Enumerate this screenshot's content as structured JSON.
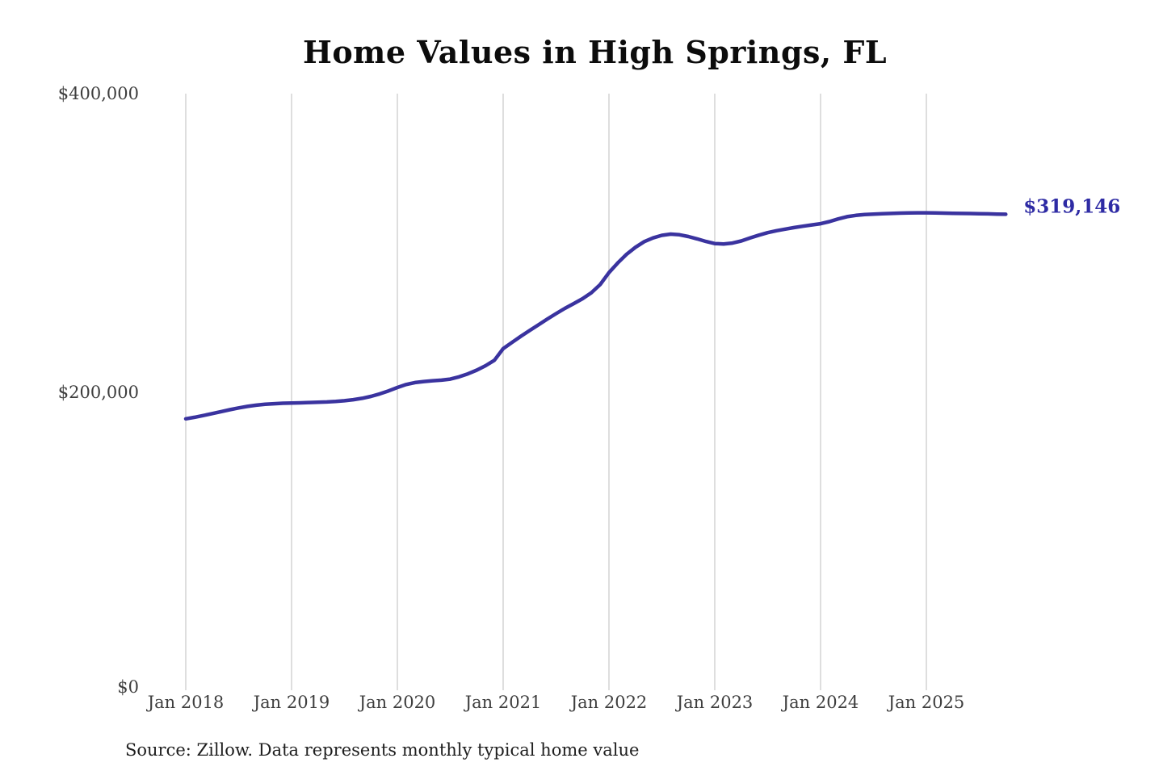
{
  "chart_data": {
    "type": "line",
    "title": "Home Values in High Springs, FL",
    "series_name": "Monthly typical home value",
    "x": [
      "2018-01",
      "2018-02",
      "2018-03",
      "2018-04",
      "2018-05",
      "2018-06",
      "2018-07",
      "2018-08",
      "2018-09",
      "2018-10",
      "2018-11",
      "2018-12",
      "2019-01",
      "2019-02",
      "2019-03",
      "2019-04",
      "2019-05",
      "2019-06",
      "2019-07",
      "2019-08",
      "2019-09",
      "2019-10",
      "2019-11",
      "2019-12",
      "2020-01",
      "2020-02",
      "2020-03",
      "2020-04",
      "2020-05",
      "2020-06",
      "2020-07",
      "2020-08",
      "2020-09",
      "2020-10",
      "2020-11",
      "2020-12",
      "2021-01",
      "2021-02",
      "2021-03",
      "2021-04",
      "2021-05",
      "2021-06",
      "2021-07",
      "2021-08",
      "2021-09",
      "2021-10",
      "2021-11",
      "2021-12",
      "2022-01",
      "2022-02",
      "2022-03",
      "2022-04",
      "2022-05",
      "2022-06",
      "2022-07",
      "2022-08",
      "2022-09",
      "2022-10",
      "2022-11",
      "2022-12",
      "2023-01",
      "2023-02",
      "2023-03",
      "2023-04",
      "2023-05",
      "2023-06",
      "2023-07",
      "2023-08",
      "2023-09",
      "2023-10",
      "2023-11",
      "2023-12",
      "2024-01",
      "2024-02",
      "2024-03",
      "2024-04",
      "2024-05",
      "2024-06",
      "2024-07",
      "2024-08",
      "2024-09",
      "2024-10",
      "2024-11",
      "2024-12",
      "2025-01",
      "2025-02",
      "2025-03",
      "2025-04",
      "2025-05",
      "2025-06",
      "2025-07",
      "2025-08",
      "2025-09",
      "2025-10"
    ],
    "values": [
      182000,
      183000,
      184200,
      185500,
      186800,
      188100,
      189300,
      190300,
      191100,
      191700,
      192100,
      192400,
      192600,
      192700,
      192900,
      193100,
      193300,
      193600,
      194100,
      194800,
      195700,
      197000,
      198700,
      200700,
      203000,
      205000,
      206300,
      207000,
      207500,
      207900,
      208600,
      210100,
      212100,
      214600,
      217600,
      221200,
      229000,
      233200,
      237300,
      241200,
      245000,
      248800,
      252500,
      256000,
      259200,
      262500,
      266500,
      272000,
      280000,
      286500,
      292300,
      297000,
      300800,
      303300,
      305000,
      305800,
      305400,
      304200,
      302600,
      300900,
      299500,
      299200,
      299800,
      301200,
      303200,
      305100,
      306800,
      308100,
      309200,
      310200,
      311100,
      312000,
      312800,
      314200,
      316000,
      317500,
      318400,
      318900,
      319200,
      319500,
      319700,
      319900,
      320000,
      320100,
      320100,
      320000,
      319900,
      319800,
      319700,
      319600,
      319500,
      319400,
      319250,
      319146
    ],
    "x_tick_labels": [
      "Jan 2018",
      "Jan 2019",
      "Jan 2020",
      "Jan 2021",
      "Jan 2022",
      "Jan 2023",
      "Jan 2024",
      "Jan 2025"
    ],
    "y_ticks": [
      {
        "value": 0,
        "label": "$0"
      },
      {
        "value": 200000,
        "label": "$200,000"
      },
      {
        "value": 400000,
        "label": "$400,000"
      }
    ],
    "ylim": [
      0,
      400000
    ],
    "end_label": "$319,146",
    "final_value": 319146,
    "source": "Source: Zillow. Data represents monthly typical home value",
    "line_color": "#3a339f",
    "end_label_color": "#2e2ba4",
    "gridline_color": "#cccccc",
    "grid": "vertical-only",
    "legend": "none"
  }
}
